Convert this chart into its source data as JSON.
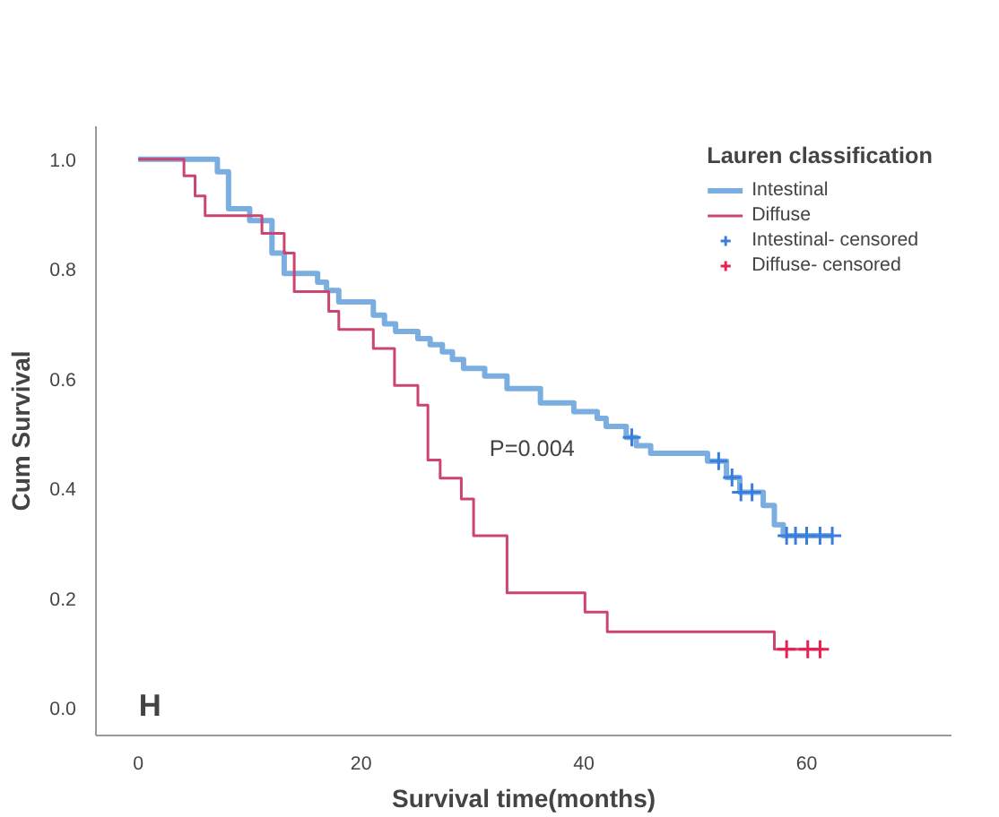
{
  "chart_data": {
    "type": "step",
    "xlabel": "Survival time(months)",
    "ylabel": "Cum Survival",
    "legend_title": "Lauren classification",
    "legend": "top right",
    "grid": false,
    "xlim": [
      -3.8,
      73
    ],
    "ylim": [
      -0.05,
      1.06
    ],
    "xticks": [
      0,
      20,
      40,
      60
    ],
    "yticks": [
      {
        "value": 0,
        "label": "0.0"
      },
      {
        "value": 0.2,
        "label": "0.2"
      },
      {
        "value": 0.4,
        "label": "0.4"
      },
      {
        "value": 0.6,
        "label": "0.6"
      },
      {
        "value": 0.8,
        "label": "0.8"
      },
      {
        "value": 1,
        "label": "1.0"
      }
    ],
    "annotations": [
      "P=0.004",
      "H"
    ],
    "series": [
      {
        "name": "Intestinal",
        "color": "#7aaee0",
        "x": [
          0,
          7.1,
          8.1,
          10,
          12,
          13.1,
          16.1,
          16.9,
          18,
          21.1,
          22.1,
          23.1,
          25.1,
          26.2,
          27.3,
          28.2,
          29.2,
          31.1,
          33.1,
          36.1,
          39.1,
          41.2,
          42,
          43.8,
          44.7,
          46,
          51.1,
          52.8,
          54,
          56.1,
          57.1,
          57.9,
          62.4
        ],
        "values": [
          1.0,
          0.977,
          0.91,
          0.888,
          0.829,
          0.792,
          0.776,
          0.761,
          0.74,
          0.716,
          0.7,
          0.686,
          0.673,
          0.662,
          0.649,
          0.635,
          0.619,
          0.605,
          0.582,
          0.556,
          0.54,
          0.528,
          0.513,
          0.493,
          0.478,
          0.464,
          0.45,
          0.42,
          0.393,
          0.369,
          0.334,
          0.314,
          0.314
        ]
      },
      {
        "name": "Diffuse",
        "color": "#cc4470",
        "x": [
          0,
          4.1,
          5.1,
          6,
          11.1,
          13.1,
          14,
          17.1,
          18,
          21.1,
          23,
          25.1,
          26,
          27.1,
          29,
          30.1,
          33.1,
          40.1,
          42.1,
          57.1,
          61.5
        ],
        "values": [
          1.0,
          0.97,
          0.933,
          0.897,
          0.865,
          0.829,
          0.759,
          0.723,
          0.69,
          0.655,
          0.588,
          0.552,
          0.452,
          0.419,
          0.381,
          0.314,
          0.21,
          0.175,
          0.139,
          0.107,
          0.107
        ]
      },
      {
        "name": "Intestinal- censored",
        "type": "scatter",
        "marker": "cross",
        "color": "#3a7ddc",
        "x": [
          44.3,
          52.1,
          53.3,
          54.1,
          55.1,
          58.2,
          59,
          60,
          61.2,
          62.3
        ],
        "values": [
          0.493,
          0.45,
          0.42,
          0.393,
          0.393,
          0.314,
          0.314,
          0.314,
          0.314,
          0.314
        ]
      },
      {
        "name": "Diffuse- censored",
        "type": "scatter",
        "marker": "cross",
        "color": "#e8204f",
        "x": [
          58.2,
          60.1,
          61.2
        ],
        "values": [
          0.107,
          0.107,
          0.107
        ]
      }
    ]
  }
}
